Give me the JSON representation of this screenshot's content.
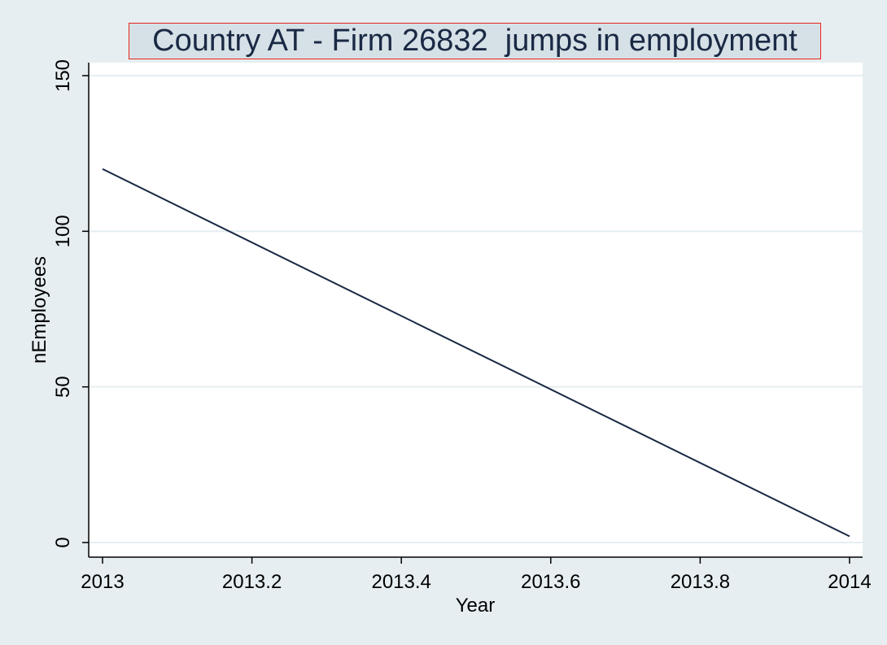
{
  "chart_data": {
    "type": "line",
    "title": "Country AT - Firm 26832  jumps in employment",
    "xlabel": "Year",
    "ylabel": "nEmployees",
    "xlim": [
      2013,
      2014
    ],
    "ylim": [
      0,
      150
    ],
    "x_ticks": [
      "2013",
      "2013.2",
      "2013.4",
      "2013.6",
      "2013.8",
      "2014"
    ],
    "x_tick_values": [
      2013,
      2013.2,
      2013.4,
      2013.6,
      2013.8,
      2014
    ],
    "y_ticks": [
      "0",
      "50",
      "100",
      "150"
    ],
    "y_tick_values": [
      0,
      50,
      100,
      150
    ],
    "grid": "horizontal",
    "series": [
      {
        "x": [
          2013,
          2014
        ],
        "y": [
          120,
          2
        ],
        "color": "#1a2944"
      }
    ],
    "colors": {
      "background": "#e6eef1",
      "plot_background": "#ffffff",
      "title_border": "#e8241a",
      "title_fill": "#d6e1e7",
      "gridline": "#e6eef1"
    }
  }
}
